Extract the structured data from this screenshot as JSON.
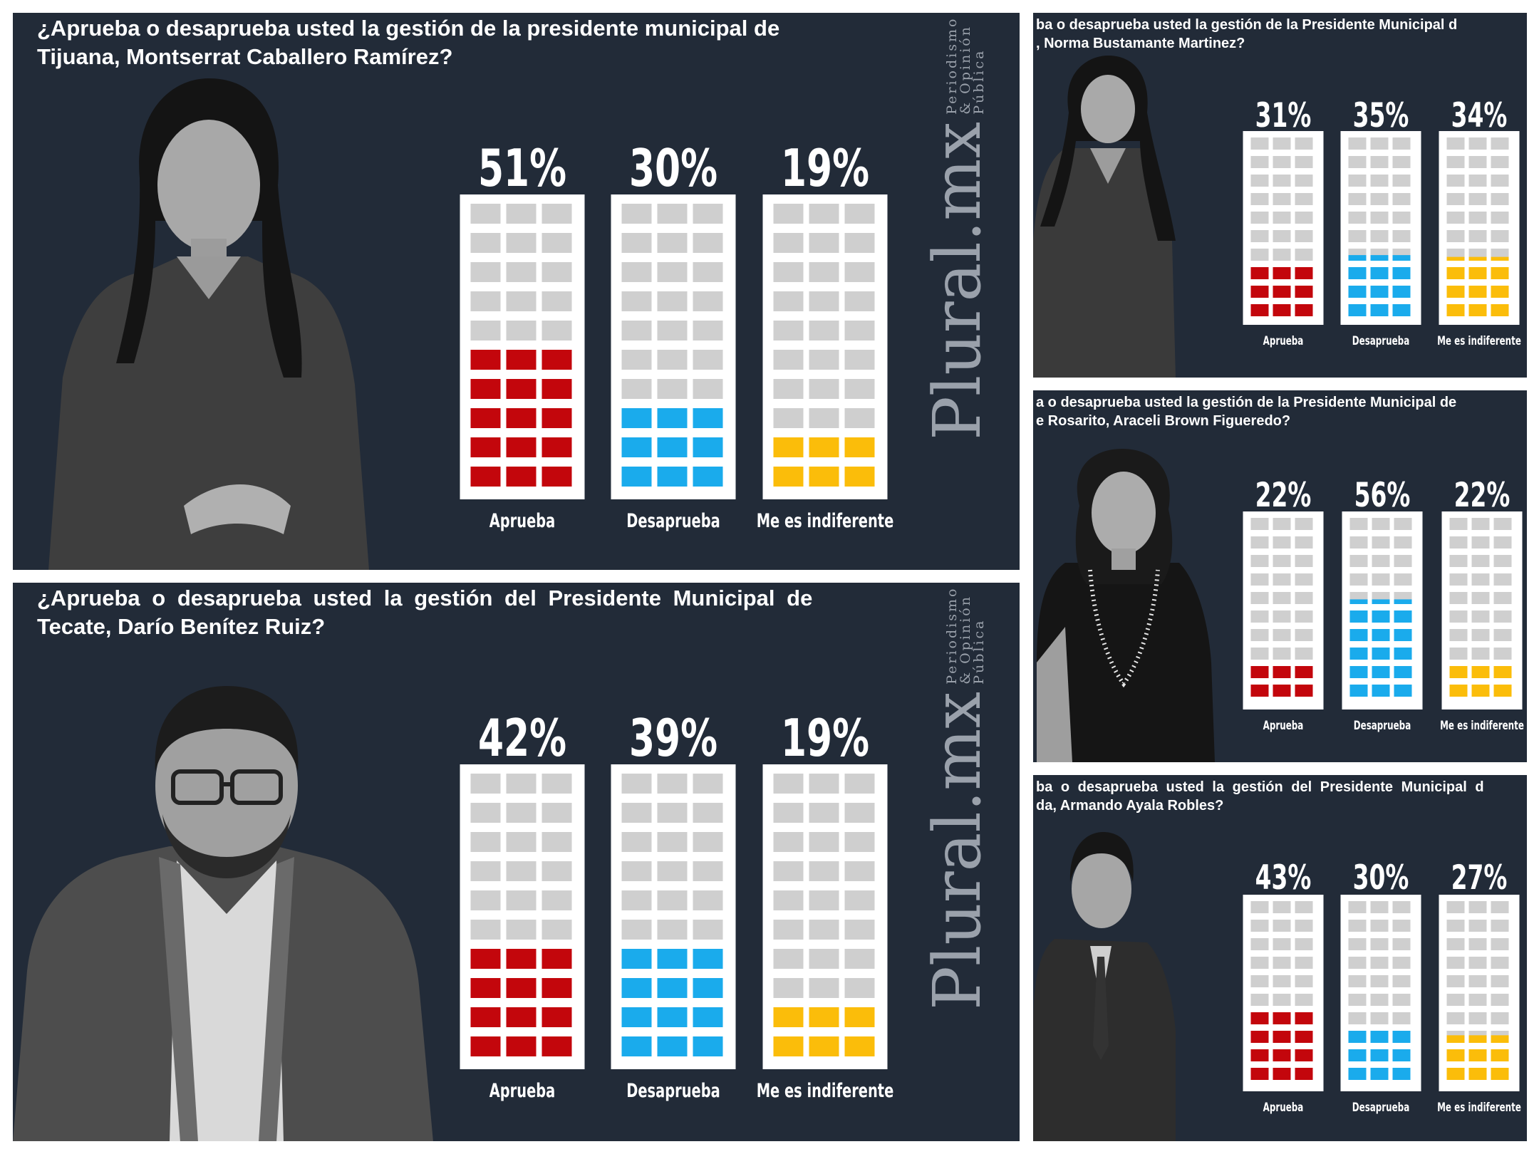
{
  "brand": {
    "watermark": "Plural.mx",
    "watermark_sub": "Periodismo & Opinión Pública"
  },
  "colors": {
    "background": "#222b38",
    "empty_cell": "#cfcfcf",
    "aprueba": "#c3060c",
    "desaprueba": "#1aabec",
    "indiferente": "#fbbd0a"
  },
  "panels": [
    {
      "id": "tijuana",
      "title_lines": [
        "¿Aprueba o desaprueba usted la gestión de la presidente municipal de",
        "Tijuana, Montserrat Caballero Ramírez?"
      ],
      "photo_icon": "woman-portrait-photo",
      "chart_data": {
        "type": "bar",
        "categories": [
          "Aprueba",
          "Desaprueba",
          "Me es indiferente"
        ],
        "values": [
          51,
          30,
          19
        ],
        "value_labels": [
          "51%",
          "30%",
          "19%"
        ],
        "unit": "%",
        "ylim": [
          0,
          100
        ]
      }
    },
    {
      "id": "tecate",
      "title_lines": [
        "¿Aprueba o desaprueba usted la gestión del Presidente Municipal de",
        "Tecate, Darío Benítez Ruiz?"
      ],
      "photo_icon": "man-portrait-photo",
      "chart_data": {
        "type": "bar",
        "categories": [
          "Aprueba",
          "Desaprueba",
          "Me es indiferente"
        ],
        "values": [
          42,
          39,
          19
        ],
        "value_labels": [
          "42%",
          "39%",
          "19%"
        ],
        "unit": "%",
        "ylim": [
          0,
          100
        ]
      }
    },
    {
      "id": "mexicali",
      "title_lines": [
        "ba o desaprueba usted la gestión de la Presidente Municipal d",
        ", Norma Bustamante Martinez?"
      ],
      "photo_icon": "woman-portrait-photo",
      "chart_data": {
        "type": "bar",
        "categories": [
          "Aprueba",
          "Desaprueba",
          "Me es indiferente"
        ],
        "values": [
          31,
          35,
          34
        ],
        "value_labels": [
          "31%",
          "35%",
          "34%"
        ],
        "unit": "%",
        "ylim": [
          0,
          100
        ]
      }
    },
    {
      "id": "rosarito",
      "title_lines": [
        "a o desaprueba usted la gestión de la Presidente Municipal de",
        "e Rosarito, Araceli Brown Figueredo?"
      ],
      "photo_icon": "woman-portrait-photo",
      "chart_data": {
        "type": "bar",
        "categories": [
          "Aprueba",
          "Desaprueba",
          "Me es indiferente"
        ],
        "values": [
          22,
          56,
          22
        ],
        "value_labels": [
          "22%",
          "56%",
          "22%"
        ],
        "unit": "%",
        "ylim": [
          0,
          100
        ]
      }
    },
    {
      "id": "ensenada",
      "title_lines": [
        "ba o desaprueba usted la gestión del Presidente Municipal d",
        "da, Armando Ayala Robles?"
      ],
      "photo_icon": "man-portrait-photo",
      "chart_data": {
        "type": "bar",
        "categories": [
          "Aprueba",
          "Desaprueba",
          "Me es indiferente"
        ],
        "values": [
          43,
          30,
          27
        ],
        "value_labels": [
          "43%",
          "30%",
          "27%"
        ],
        "unit": "%",
        "ylim": [
          0,
          100
        ]
      }
    }
  ]
}
